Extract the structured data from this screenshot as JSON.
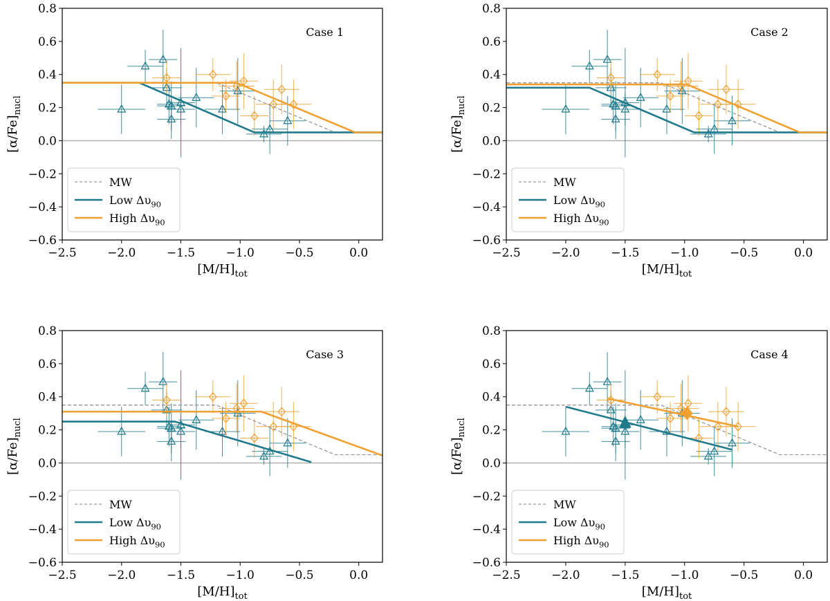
{
  "colors": {
    "low": "#1f7a8c",
    "high": "#f0a030",
    "mw": "#999999",
    "zero": "#aaaaaa"
  },
  "chart_data": [
    {
      "type": "scatter",
      "title": "Case 1",
      "xlabel": "[M/H]",
      "xlabel_sub": "tot",
      "ylabel": "[α/Fe]",
      "ylabel_sub": "nucl",
      "xlim": [
        -2.5,
        0.2
      ],
      "ylim": [
        -0.6,
        0.8
      ],
      "xticks": [
        "−2.5",
        "−2.0",
        "−1.5",
        "−1.0",
        "−0.5",
        "0.0"
      ],
      "yticks": [
        "−0.6",
        "−0.4",
        "−0.2",
        "0.0",
        "0.2",
        "0.4",
        "0.6",
        "0.8"
      ],
      "legend": [
        "MW",
        "Low Δυ",
        "High Δυ"
      ],
      "legend_sub": "90",
      "mw_line": {
        "x": [
          -2.5,
          -1.2,
          -0.2,
          0.2
        ],
        "y": [
          0.35,
          0.35,
          0.05,
          0.05
        ]
      },
      "low_line": {
        "x": [
          -2.5,
          -1.85,
          -0.88,
          0.2
        ],
        "y": [
          0.35,
          0.35,
          0.05,
          0.05
        ]
      },
      "high_line": {
        "x": [
          -2.5,
          -1.83,
          -1.03,
          -0.03,
          0.2
        ],
        "y": [
          0.35,
          0.35,
          0.35,
          0.05,
          0.05
        ]
      }
    },
    {
      "type": "scatter",
      "title": "Case 2",
      "xlabel": "[M/H]",
      "xlabel_sub": "tot",
      "ylabel": "[α/Fe]",
      "ylabel_sub": "nucl",
      "xlim": [
        -2.5,
        0.2
      ],
      "ylim": [
        -0.6,
        0.8
      ],
      "xticks": [
        "−2.5",
        "−2.0",
        "−1.5",
        "−1.0",
        "−0.5",
        "0.0"
      ],
      "yticks": [
        "−0.6",
        "−0.4",
        "−0.2",
        "0.0",
        "0.2",
        "0.4",
        "0.6",
        "0.8"
      ],
      "legend": [
        "MW",
        "Low Δυ",
        "High Δυ"
      ],
      "legend_sub": "90",
      "mw_line": {
        "x": [
          -2.5,
          -1.2,
          -0.2,
          0.2
        ],
        "y": [
          0.35,
          0.35,
          0.05,
          0.05
        ]
      },
      "low_line": {
        "x": [
          -2.5,
          -1.8,
          -0.92,
          0.2
        ],
        "y": [
          0.32,
          0.32,
          0.05,
          0.05
        ]
      },
      "high_line": {
        "x": [
          -2.5,
          -0.98,
          -0.03,
          0.2
        ],
        "y": [
          0.34,
          0.34,
          0.05,
          0.05
        ]
      }
    },
    {
      "type": "scatter",
      "title": "Case 3",
      "xlabel": "[M/H]",
      "xlabel_sub": "tot",
      "ylabel": "[α/Fe]",
      "ylabel_sub": "nucl",
      "xlim": [
        -2.5,
        0.2
      ],
      "ylim": [
        -0.6,
        0.8
      ],
      "xticks": [
        "−2.5",
        "−2.0",
        "−1.5",
        "−1.0",
        "−0.5",
        "0.0"
      ],
      "yticks": [
        "−0.6",
        "−0.4",
        "−0.2",
        "0.0",
        "0.2",
        "0.4",
        "0.6",
        "0.8"
      ],
      "legend": [
        "MW",
        "Low Δυ",
        "High Δυ"
      ],
      "legend_sub": "90",
      "mw_line": {
        "x": [
          -2.5,
          -1.2,
          -0.2,
          0.2
        ],
        "y": [
          0.35,
          0.35,
          0.05,
          0.05
        ]
      },
      "low_line": {
        "x": [
          -2.5,
          -1.55,
          -0.4
        ],
        "y": [
          0.25,
          0.25,
          0.005
        ]
      },
      "high_line": {
        "x": [
          -2.5,
          -0.82,
          0.2
        ],
        "y": [
          0.31,
          0.31,
          0.045
        ]
      }
    },
    {
      "type": "scatter",
      "title": "Case 4",
      "xlabel": "[M/H]",
      "xlabel_sub": "tot",
      "ylabel": "[α/Fe]",
      "ylabel_sub": "nucl",
      "xlim": [
        -2.5,
        0.2
      ],
      "ylim": [
        -0.6,
        0.8
      ],
      "xticks": [
        "−2.5",
        "−2.0",
        "−1.5",
        "−1.0",
        "−0.5",
        "0.0"
      ],
      "yticks": [
        "−0.6",
        "−0.4",
        "−0.2",
        "0.0",
        "0.2",
        "0.4",
        "0.6",
        "0.8"
      ],
      "legend": [
        "MW",
        "Low Δυ",
        "High Δυ"
      ],
      "legend_sub": "90",
      "mw_line": {
        "x": [
          -2.5,
          -1.2,
          -0.2,
          0.2
        ],
        "y": [
          0.35,
          0.35,
          0.05,
          0.05
        ]
      },
      "low_line": {
        "x": [
          -2.0,
          -0.6
        ],
        "y": [
          0.34,
          0.08
        ]
      },
      "high_line": {
        "x": [
          -1.65,
          -0.55
        ],
        "y": [
          0.39,
          0.22
        ]
      },
      "low_mean": {
        "x": -1.5,
        "y": 0.24
      },
      "high_mean": {
        "x": -0.98,
        "y": 0.3
      }
    }
  ],
  "low_points": [
    {
      "x": -1.8,
      "y": 0.45,
      "xe": 0.15,
      "ye": 0.1
    },
    {
      "x": -1.65,
      "y": 0.49,
      "xe": 0.12,
      "ye": 0.18
    },
    {
      "x": -1.62,
      "y": 0.32,
      "xe": 0.13,
      "ye": 0.12
    },
    {
      "x": -1.6,
      "y": 0.22,
      "xe": 0.1,
      "ye": 0.12
    },
    {
      "x": -1.58,
      "y": 0.13,
      "xe": 0.12,
      "ye": 0.12
    },
    {
      "x": -1.58,
      "y": 0.21,
      "xe": 0.12,
      "ye": 0.15
    },
    {
      "x": -1.5,
      "y": 0.19,
      "xe": 0.12,
      "ye": 0.1
    },
    {
      "x": -1.5,
      "y": 0.23,
      "xe": 0.12,
      "ye": 0.33
    },
    {
      "x": -1.37,
      "y": 0.26,
      "xe": 0.15,
      "ye": 0.18
    },
    {
      "x": -1.15,
      "y": 0.19,
      "xe": 0.15,
      "ye": 0.15
    },
    {
      "x": -2.0,
      "y": 0.19,
      "xe": 0.2,
      "ye": 0.15
    },
    {
      "x": -1.02,
      "y": 0.3,
      "xe": 0.15,
      "ye": 0.2
    },
    {
      "x": -0.8,
      "y": 0.04,
      "xe": 0.15,
      "ye": 0.05
    },
    {
      "x": -0.75,
      "y": 0.07,
      "xe": 0.15,
      "ye": 0.15
    },
    {
      "x": -0.6,
      "y": 0.12,
      "xe": 0.15,
      "ye": 0.15
    }
  ],
  "high_points": [
    {
      "x": -1.62,
      "y": 0.38,
      "xe": 0.12,
      "ye": 0.1
    },
    {
      "x": -1.23,
      "y": 0.4,
      "xe": 0.15,
      "ye": 0.1
    },
    {
      "x": -1.12,
      "y": 0.27,
      "xe": 0.12,
      "ye": 0.1
    },
    {
      "x": -0.97,
      "y": 0.36,
      "xe": 0.12,
      "ye": 0.17
    },
    {
      "x": -1.03,
      "y": 0.33,
      "xe": 0.15,
      "ye": 0.15
    },
    {
      "x": -0.88,
      "y": 0.15,
      "xe": 0.12,
      "ye": 0.12
    },
    {
      "x": -0.72,
      "y": 0.22,
      "xe": 0.15,
      "ye": 0.15
    },
    {
      "x": -0.65,
      "y": 0.31,
      "xe": 0.15,
      "ye": 0.15
    },
    {
      "x": -0.55,
      "y": 0.22,
      "xe": 0.15,
      "ye": 0.15
    }
  ]
}
